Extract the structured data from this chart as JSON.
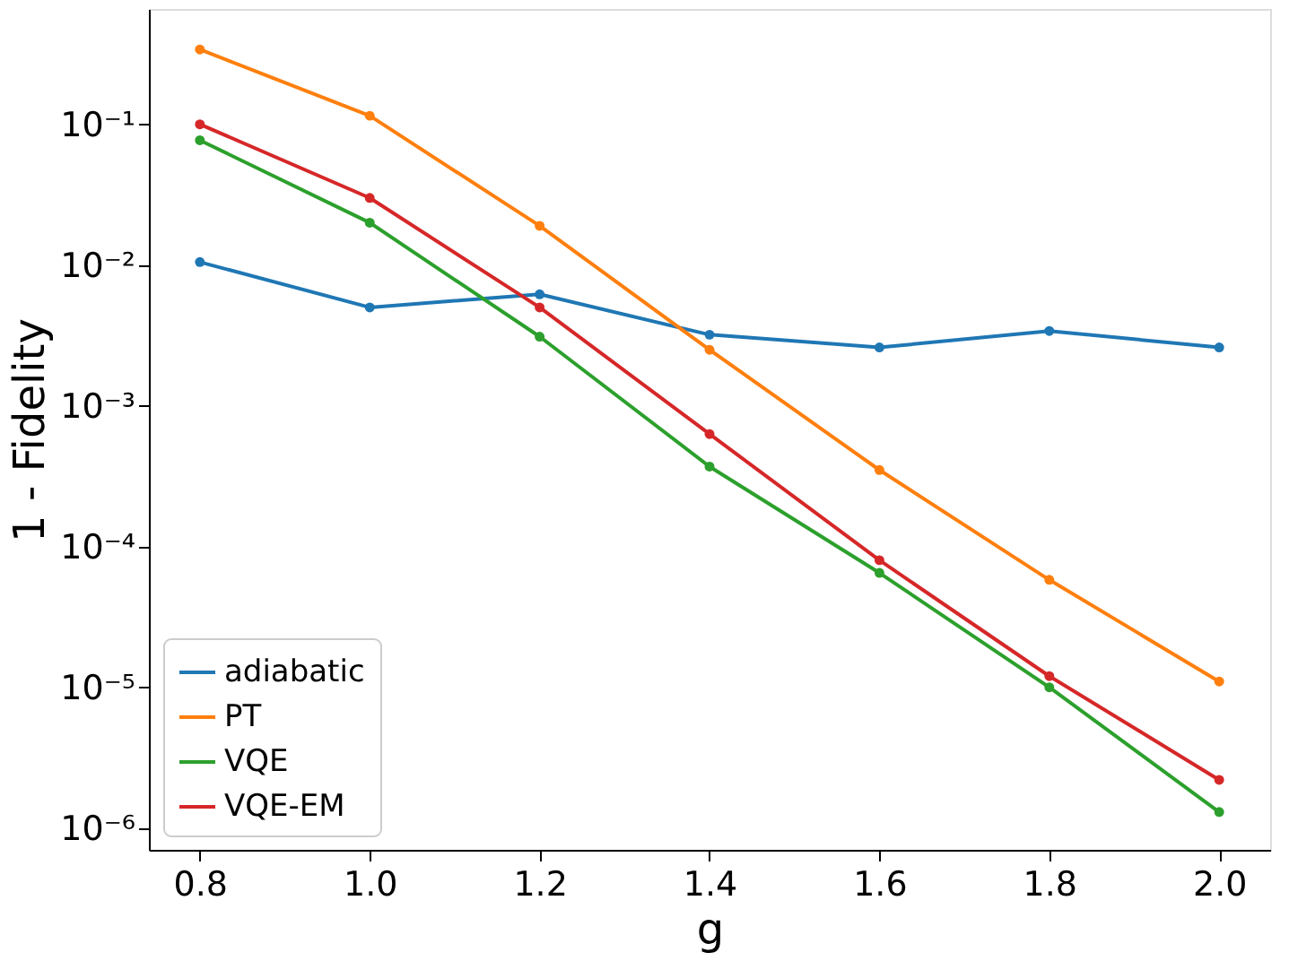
{
  "chart_data": {
    "type": "line",
    "xlabel": "g",
    "ylabel": "1 - Fidelity",
    "log": "y",
    "marker": "circle",
    "line_style": "solid",
    "grid": false,
    "legend": "bottom left",
    "x": [
      0.8,
      1.0,
      1.2,
      1.4,
      1.6,
      1.8,
      2.0
    ],
    "xlim": [
      0.74,
      2.06
    ],
    "xticks": [
      0.8,
      {
        "value": 1,
        "label": "1.0"
      },
      1.2,
      1.4,
      1.6,
      1.8,
      {
        "value": 2,
        "label": "2.0"
      }
    ],
    "ylim": [
      7e-07,
      0.66
    ],
    "yticks": [
      {
        "value": 1e-06,
        "label": "10⁻⁶"
      },
      {
        "value": 1e-05,
        "label": "10⁻⁵"
      },
      {
        "value": 0.0001,
        "label": "10⁻⁴"
      },
      {
        "value": 0.001,
        "label": "10⁻³"
      },
      {
        "value": 0.01,
        "label": "10⁻²"
      },
      {
        "value": 0.1,
        "label": "10⁻¹"
      }
    ],
    "series": [
      {
        "name": "adiabatic",
        "color": "#1f77b4",
        "values": [
          0.0105,
          0.005,
          0.0062,
          0.0032,
          0.0026,
          0.0034,
          0.0026
        ]
      },
      {
        "name": "PT",
        "color": "#ff7f0e",
        "values": [
          0.34,
          0.115,
          0.019,
          0.0025,
          0.00035,
          5.8e-05,
          1.1e-05
        ]
      },
      {
        "name": "VQE",
        "color": "#2ca02c",
        "values": [
          0.077,
          0.02,
          0.0031,
          0.00037,
          6.5e-05,
          1e-05,
          1.3e-06
        ]
      },
      {
        "name": "VQE-EM",
        "color": "#d62728",
        "values": [
          0.1,
          0.03,
          0.005,
          0.00063,
          8e-05,
          1.2e-05,
          2.2e-06
        ]
      }
    ]
  }
}
